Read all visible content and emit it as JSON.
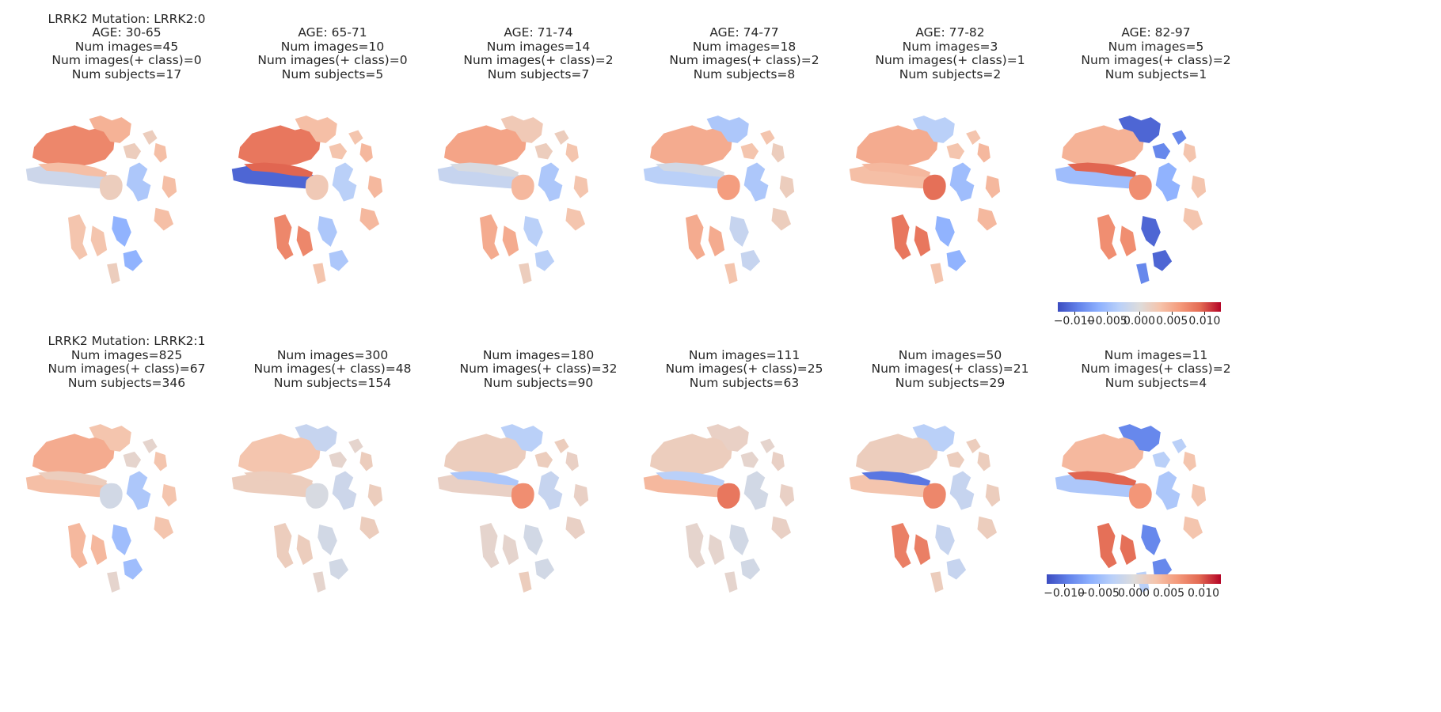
{
  "chart_data": {
    "type": "heatmap",
    "description_note": "",
    "colormap": "coolwarm",
    "colors": {
      "low": "#3b4cc0",
      "mid": "#dddcdc",
      "high": "#b40426"
    },
    "colorbar": {
      "ticks": [
        "−0.010",
        "−0.005",
        "0.000",
        "0.005",
        "0.010"
      ],
      "tick_values": [
        -0.01,
        -0.005,
        0.0,
        0.005,
        0.01
      ],
      "vmin": -0.0125,
      "vmax": 0.0125
    },
    "rows": [
      {
        "row_label": "LRRK2 Mutation: LRRK2:0",
        "panels": [
          {
            "title_lines": [
              "LRRK2 Mutation: LRRK2:0",
              "AGE: 30-65",
              "Num images=45",
              "Num images(+ class)=0",
              "Num subjects=17"
            ],
            "region_values": [
              0.0075,
              0.0045,
              -0.0015,
              0.0035,
              0.002,
              -0.004,
              0.0035,
              0.003,
              -0.006,
              0.002
            ]
          },
          {
            "title_lines": [
              "AGE: 65-71",
              "Num images=10",
              "Num images(+ class)=0",
              "Num subjects=5"
            ],
            "region_values": [
              0.0085,
              0.0035,
              -0.011,
              0.0095,
              0.0025,
              -0.003,
              0.004,
              0.0075,
              -0.004,
              0.003
            ]
          },
          {
            "title_lines": [
              "AGE: 71-74",
              "Num images=14",
              "Num images(+ class)=2",
              "Num subjects=7"
            ],
            "region_values": [
              0.0055,
              0.0025,
              -0.002,
              -0.0005,
              0.004,
              -0.004,
              0.003,
              0.005,
              -0.003,
              0.002
            ]
          },
          {
            "title_lines": [
              "AGE: 74-77",
              "Num images=18",
              "Num images(+ class)=2",
              "Num subjects=8"
            ],
            "region_values": [
              0.005,
              -0.004,
              -0.003,
              -0.001,
              0.006,
              -0.004,
              0.002,
              0.005,
              -0.002,
              0.003
            ]
          },
          {
            "title_lines": [
              "AGE: 77-82",
              "Num images=3",
              "Num images(+ class)=1",
              "Num subjects=2"
            ],
            "region_values": [
              0.005,
              -0.003,
              0.0035,
              0.004,
              0.009,
              -0.005,
              0.004,
              0.0085,
              -0.006,
              0.003
            ]
          },
          {
            "title_lines": [
              "AGE: 82-97",
              "Num images=5",
              "Num images(+ class)=2",
              "Num subjects=1"
            ],
            "region_values": [
              0.0045,
              -0.011,
              -0.005,
              0.0095,
              0.007,
              -0.006,
              0.003,
              0.007,
              -0.011,
              -0.009
            ]
          }
        ]
      },
      {
        "row_label": "LRRK2 Mutation: LRRK2:1",
        "panels": [
          {
            "title_lines": [
              "LRRK2 Mutation: LRRK2:1",
              "Num images=825",
              "Num images(+ class)=67",
              "Num subjects=346"
            ],
            "region_values": [
              0.005,
              0.003,
              0.0035,
              0.002,
              -0.001,
              -0.004,
              0.003,
              0.004,
              -0.005,
              0.001
            ]
          },
          {
            "title_lines": [
              "Num images=300",
              "Num images(+ class)=48",
              "Num subjects=154"
            ],
            "region_values": [
              0.003,
              -0.002,
              0.002,
              0.002,
              -0.0005,
              -0.0015,
              0.002,
              0.002,
              -0.001,
              0.001
            ]
          },
          {
            "title_lines": [
              "Num images=180",
              "Num images(+ class)=32",
              "Num subjects=90"
            ],
            "region_values": [
              0.002,
              -0.003,
              0.0015,
              -0.004,
              0.007,
              -0.002,
              0.0015,
              0.001,
              -0.001,
              0.002
            ]
          },
          {
            "title_lines": [
              "Num images=111",
              "Num images(+ class)=25",
              "Num subjects=63"
            ],
            "region_values": [
              0.002,
              0.0015,
              0.004,
              -0.003,
              0.0085,
              -0.001,
              0.0015,
              0.001,
              -0.001,
              0.001
            ]
          },
          {
            "title_lines": [
              "Num images=50",
              "Num images(+ class)=21",
              "Num subjects=29"
            ],
            "region_values": [
              0.002,
              -0.003,
              0.003,
              -0.01,
              0.0075,
              -0.002,
              0.002,
              0.008,
              -0.002,
              0.002
            ]
          },
          {
            "title_lines": [
              "Num images=11",
              "Num images(+ class)=2",
              "Num subjects=4"
            ],
            "region_values": [
              0.004,
              -0.009,
              -0.004,
              0.0095,
              0.0065,
              -0.004,
              0.003,
              0.009,
              -0.009,
              -0.003
            ]
          }
        ]
      }
    ]
  }
}
